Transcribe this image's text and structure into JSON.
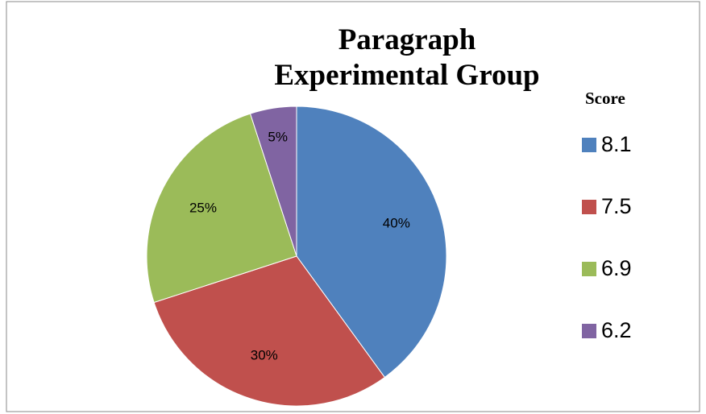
{
  "chart_data": {
    "type": "pie",
    "title": "Paragraph Experimental Group",
    "legend_title": "Score",
    "categories": [
      "8.1",
      "7.5",
      "6.9",
      "6.2"
    ],
    "values": [
      40,
      30,
      25,
      5
    ],
    "value_labels": [
      "40%",
      "30%",
      "25%",
      "5%"
    ],
    "colors": [
      "#4f81bd",
      "#c0504d",
      "#9bbb59",
      "#8064a2"
    ],
    "legend": "right"
  }
}
